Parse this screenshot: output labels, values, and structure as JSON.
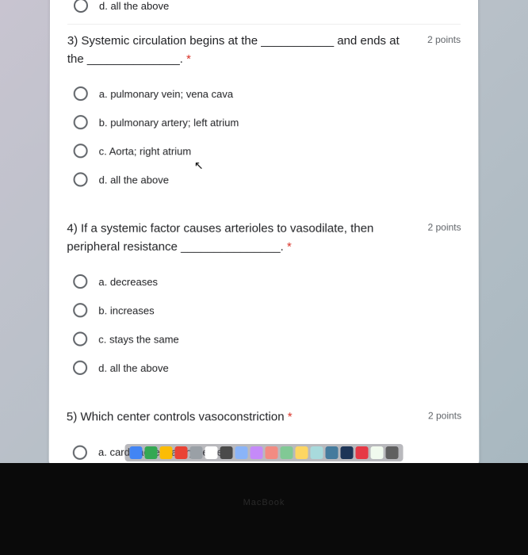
{
  "partial_q2": {
    "option_d": "d. all the above"
  },
  "q3": {
    "text": "3) Systemic circulation begins at the ___________ and ends at the ______________.",
    "points": "2 points",
    "options": {
      "a": "a. pulmonary vein; vena cava",
      "b": "b. pulmonary artery; left atrium",
      "c": "c. Aorta; right atrium",
      "d": "d. all the above"
    }
  },
  "q4": {
    "text": "4) If a systemic factor causes arterioles to vasodilate, then peripheral resistance _______________.",
    "points": "2 points",
    "options": {
      "a": "a. decreases",
      "b": "b. increases",
      "c": "c. stays the same",
      "d": "d. all the above"
    }
  },
  "q5": {
    "text": "5) Which center controls vasoconstriction",
    "points": "2 points",
    "options": {
      "a": "a. cardioacceleratory center"
    }
  },
  "asterisk": "*",
  "macbook": "MacBook",
  "dock_colors": [
    "#4285f4",
    "#34a853",
    "#fbbc05",
    "#ea4335",
    "#9aa0a6",
    "#ffffff",
    "#4a4a4a",
    "#8ab4f8",
    "#c58af9",
    "#f28b82",
    "#81c995",
    "#fdd663",
    "#a8dadc",
    "#457b9d",
    "#1d3557",
    "#e63946",
    "#f1faee",
    "#606060"
  ]
}
